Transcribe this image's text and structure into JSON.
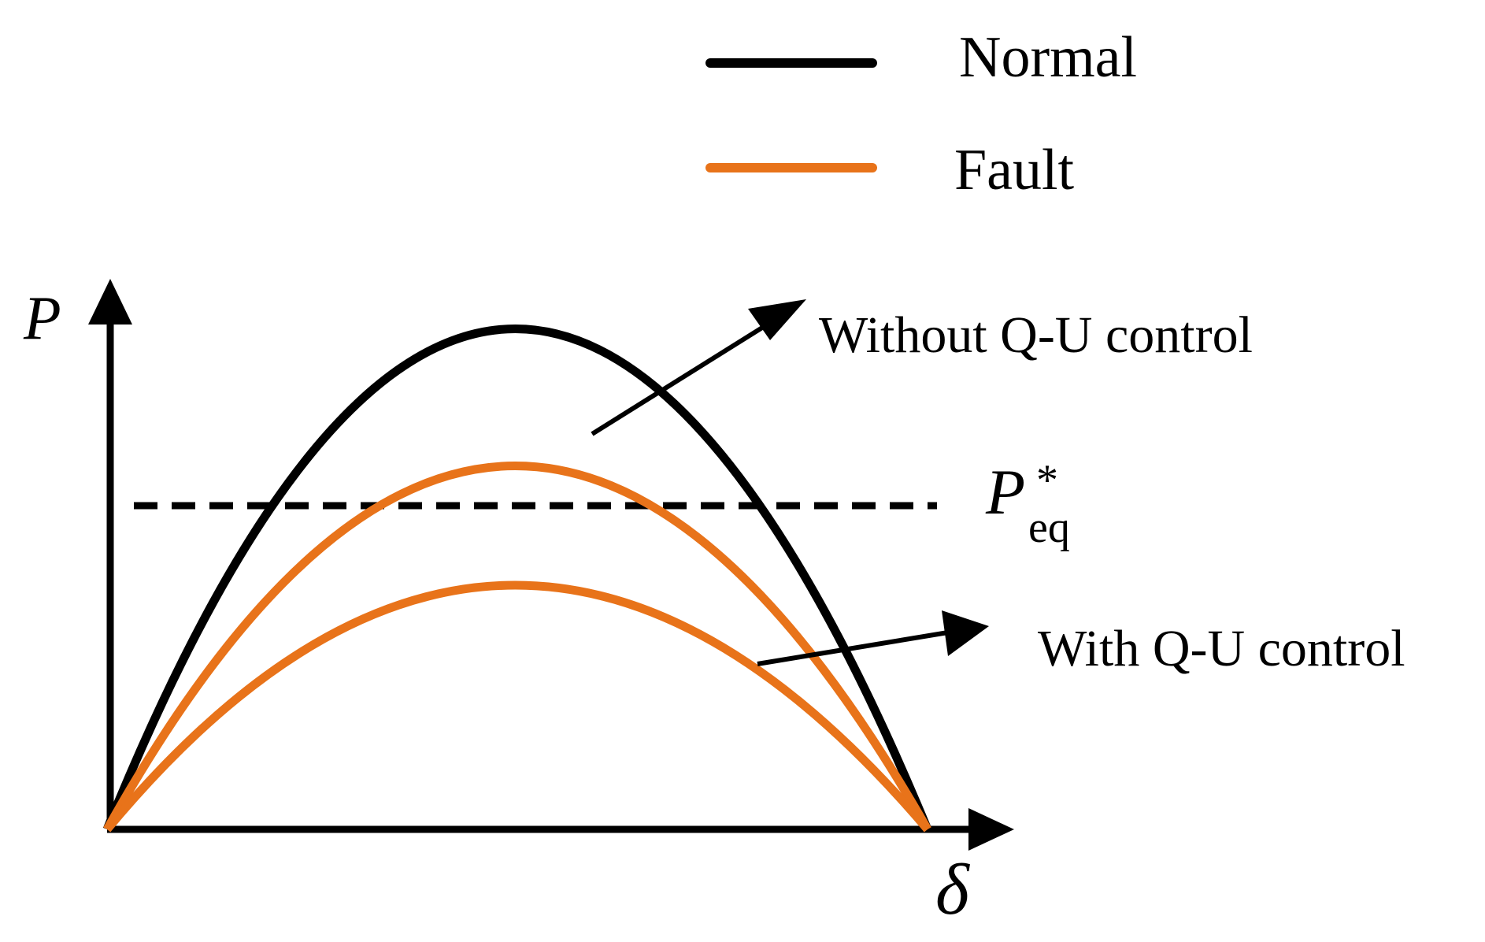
{
  "legend": {
    "items": [
      {
        "label": "Normal",
        "color": "#000000"
      },
      {
        "label": "Fault",
        "color": "#E8731A"
      }
    ]
  },
  "axes": {
    "y_label": "P",
    "x_label": "δ"
  },
  "reference_line": {
    "main": "P",
    "sub": "eq",
    "sup": "*"
  },
  "annotations": {
    "without": "Without Q-U control",
    "with": "With Q-U control"
  },
  "colors": {
    "normal": "#000000",
    "fault": "#E8731A",
    "axis": "#000000"
  }
}
